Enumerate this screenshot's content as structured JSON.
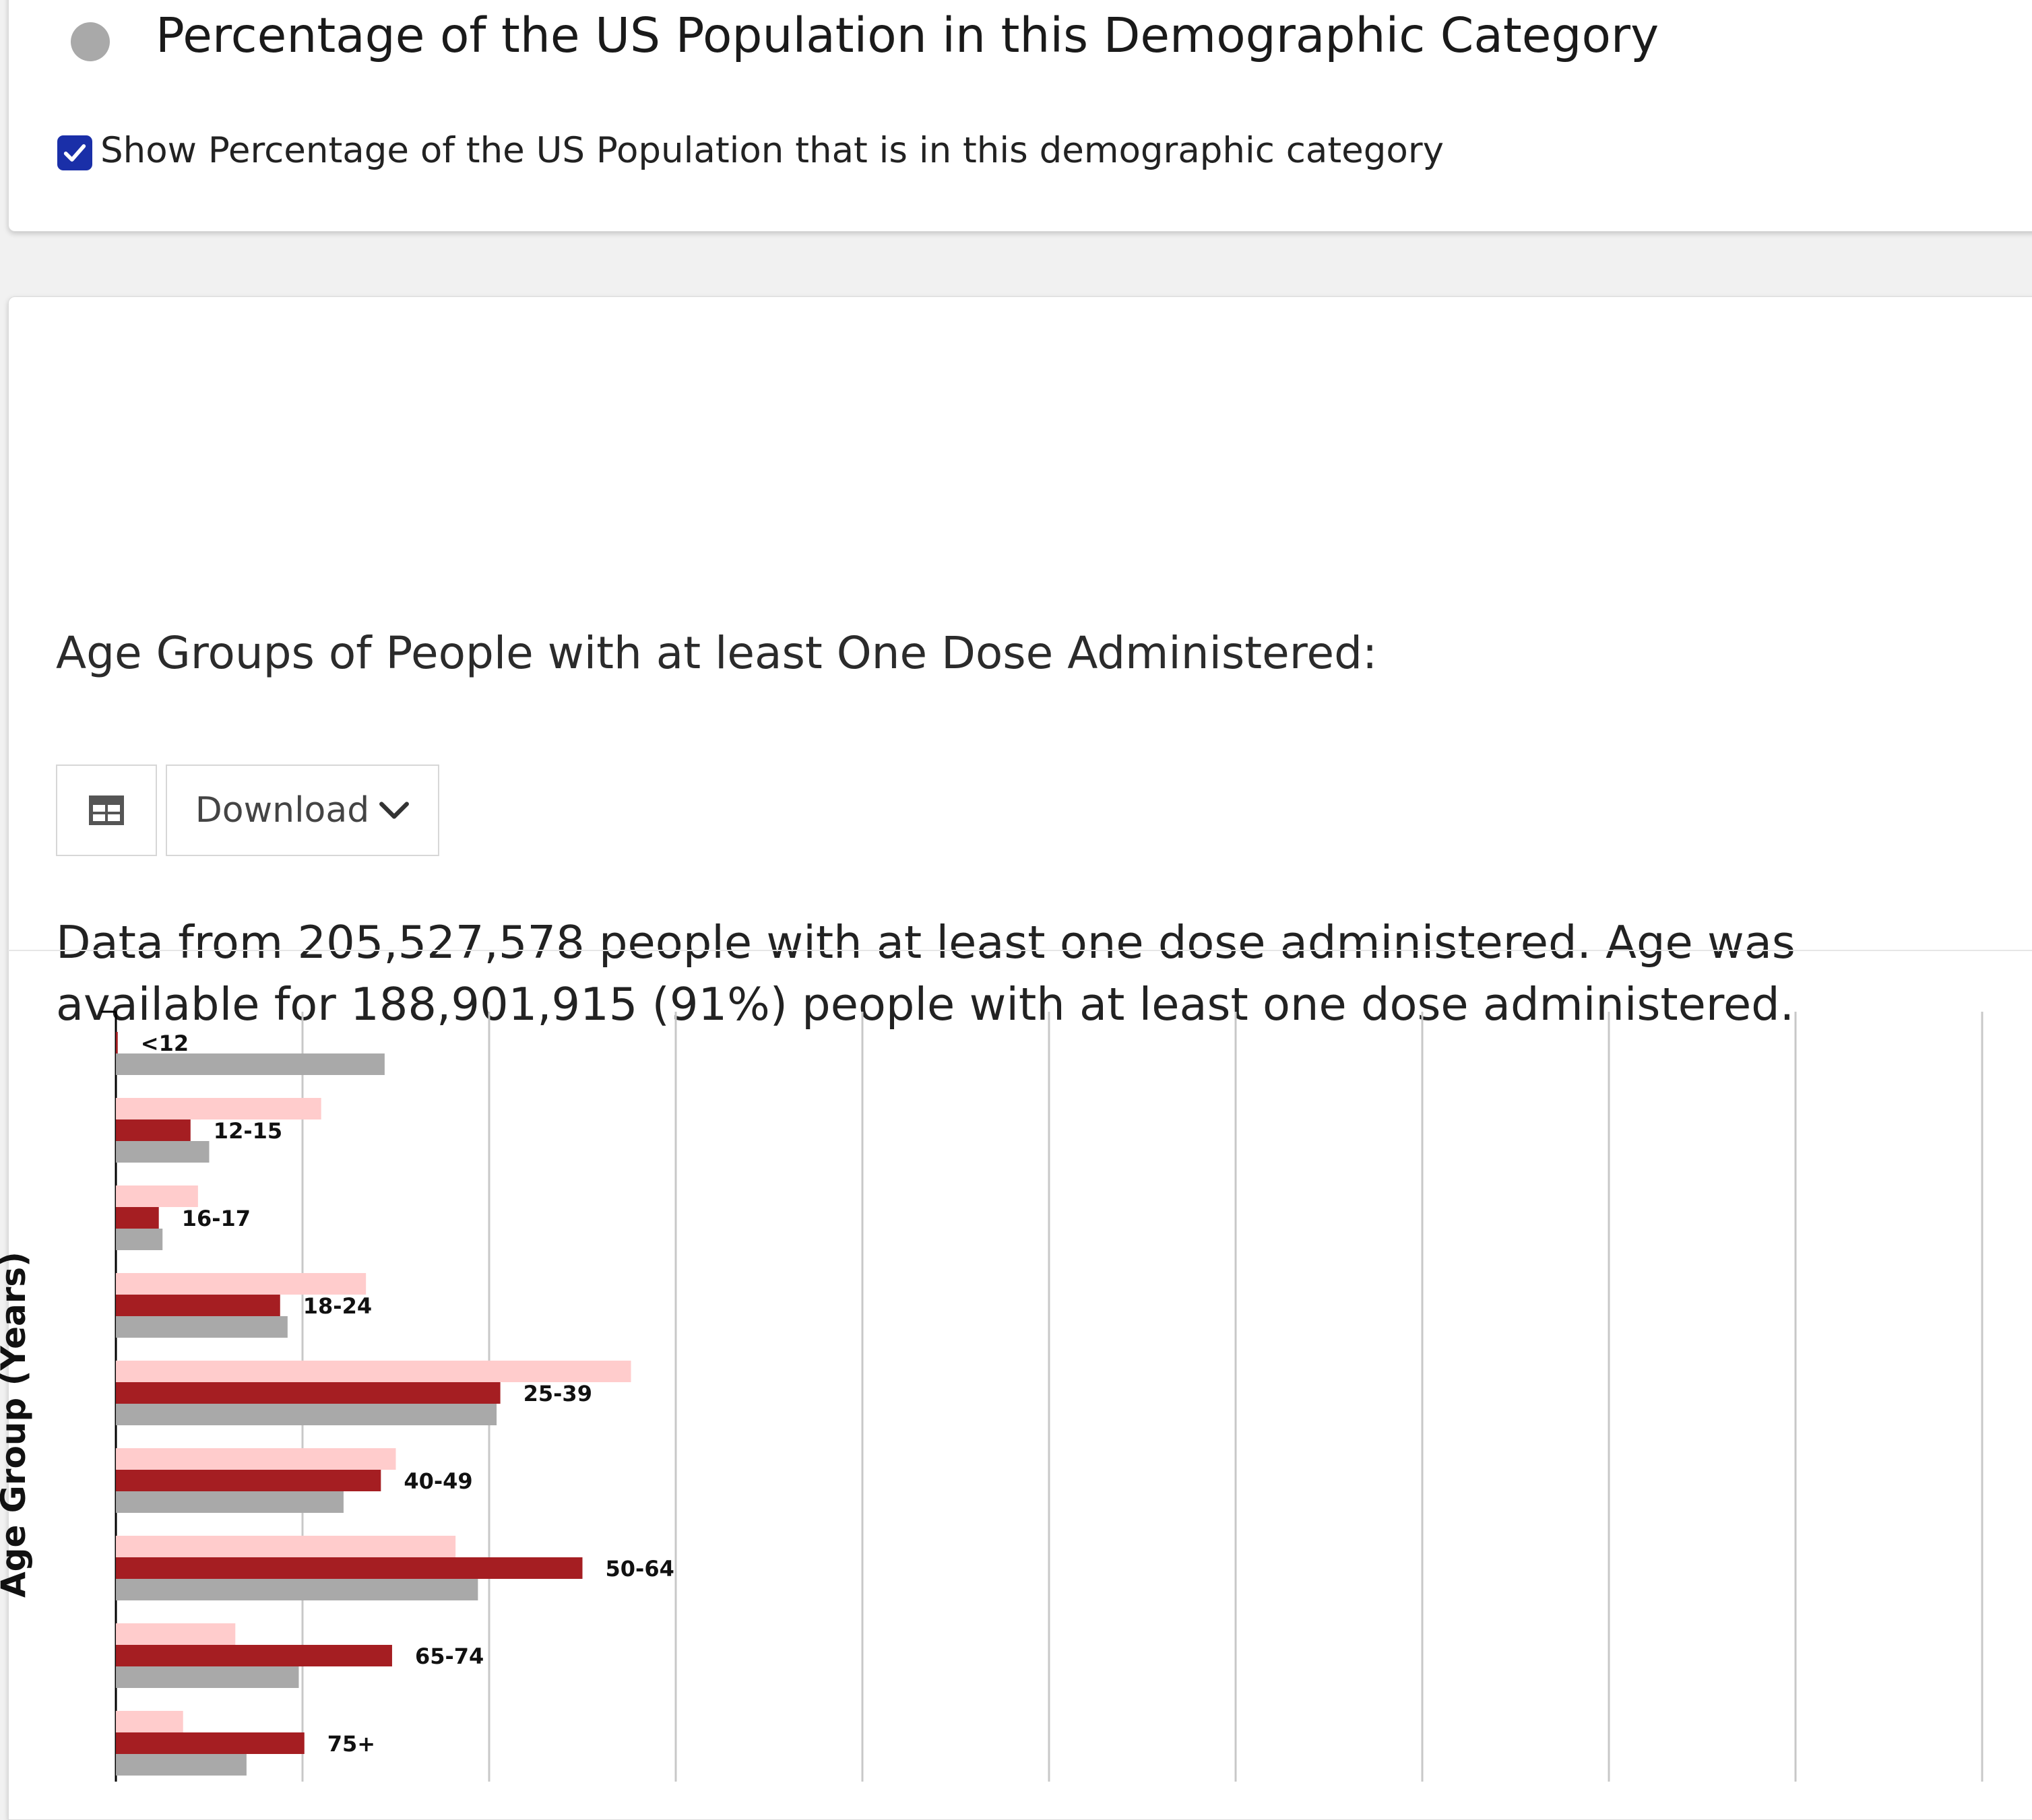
{
  "legend": {
    "label": "Percentage of the US Population in this Demographic Category",
    "color": "#a9a9a9"
  },
  "toggle": {
    "label": "Show Percentage of the US Population that is in this demographic category",
    "checked": true,
    "color": "#1a2fa8"
  },
  "section": {
    "title": "Age Groups of People with at least One Dose Administered:"
  },
  "toolbar": {
    "table_icon": "table-icon",
    "download_label": "Download",
    "download_icon": "chevron-down-icon"
  },
  "summary": {
    "text": "Data from 205,527,578 people with at least one dose administered. Age was available for 188,901,915 (91%) people with at least one dose administered."
  },
  "chart_data": {
    "type": "bar",
    "orientation": "horizontal",
    "ylabel": "Age Group (Years)",
    "xlabel": "",
    "xlim": [
      0,
      50
    ],
    "x_gridline_step": 5,
    "grid": true,
    "categories": [
      "<12",
      "12-15",
      "16-17",
      "18-24",
      "25-39",
      "40-49",
      "50-64",
      "65-74",
      "75+"
    ],
    "series": [
      {
        "values": [
          0,
          5.5,
          2.2,
          6.7,
          13.8,
          7.5,
          9.1,
          3.2,
          1.8
        ],
        "color": "#ffcccc"
      },
      {
        "values": [
          0.05,
          2.0,
          1.15,
          4.4,
          10.3,
          7.1,
          12.5,
          7.4,
          5.05
        ],
        "color": "#a51e22"
      },
      {
        "values": [
          7.2,
          2.5,
          1.25,
          4.6,
          10.2,
          6.1,
          9.7,
          4.9,
          3.5
        ],
        "color": "#a9a9a9"
      }
    ]
  }
}
